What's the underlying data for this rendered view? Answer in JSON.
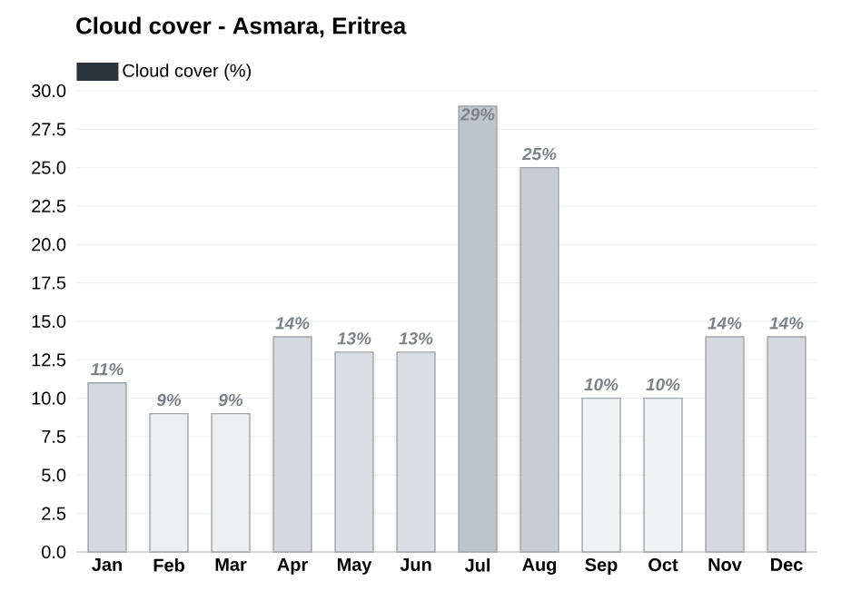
{
  "chart_data": {
    "type": "bar",
    "title": "Cloud cover - Asmara, Eritrea",
    "categories": [
      "Jan",
      "Feb",
      "Mar",
      "Apr",
      "May",
      "Jun",
      "Jul",
      "Aug",
      "Sep",
      "Oct",
      "Nov",
      "Dec"
    ],
    "series": [
      {
        "name": "Cloud cover (%)",
        "color": "#2b333c",
        "values": [
          11,
          9,
          9,
          14,
          13,
          13,
          29,
          25,
          10,
          10,
          14,
          14
        ],
        "colors": [
          "#d3d9dd",
          "#eceef1",
          "#eceef1",
          "#d3d9dd",
          "#d9dee2",
          "#d9dee2",
          "#bcc5cb",
          "#c6cdd3",
          "#eff1f3",
          "#eff1f3",
          "#d3d9dd",
          "#d3d9dd"
        ],
        "value_labels": [
          "11%",
          "9%",
          "9%",
          "14%",
          "13%",
          "13%",
          "29%",
          "25%",
          "10%",
          "10%",
          "14%",
          "14%"
        ]
      }
    ],
    "ylim": [
      0,
      30
    ],
    "yticks": [
      {
        "value": 0,
        "label": "0.0"
      },
      {
        "value": 2.5,
        "label": "2.5"
      },
      {
        "value": 5,
        "label": "5.0"
      },
      {
        "value": 7.5,
        "label": "7.5"
      },
      {
        "value": 10,
        "label": "10.0"
      },
      {
        "value": 12.5,
        "label": "12.5"
      },
      {
        "value": 15,
        "label": "15.0"
      },
      {
        "value": 17.5,
        "label": "17.5"
      },
      {
        "value": 20,
        "label": "20.0"
      },
      {
        "value": 22.5,
        "label": "22.5"
      },
      {
        "value": 25,
        "label": "25.0"
      },
      {
        "value": 27.5,
        "label": "27.5"
      },
      {
        "value": 30,
        "label": "30.0"
      }
    ],
    "grid": "y",
    "legend": "top left"
  }
}
